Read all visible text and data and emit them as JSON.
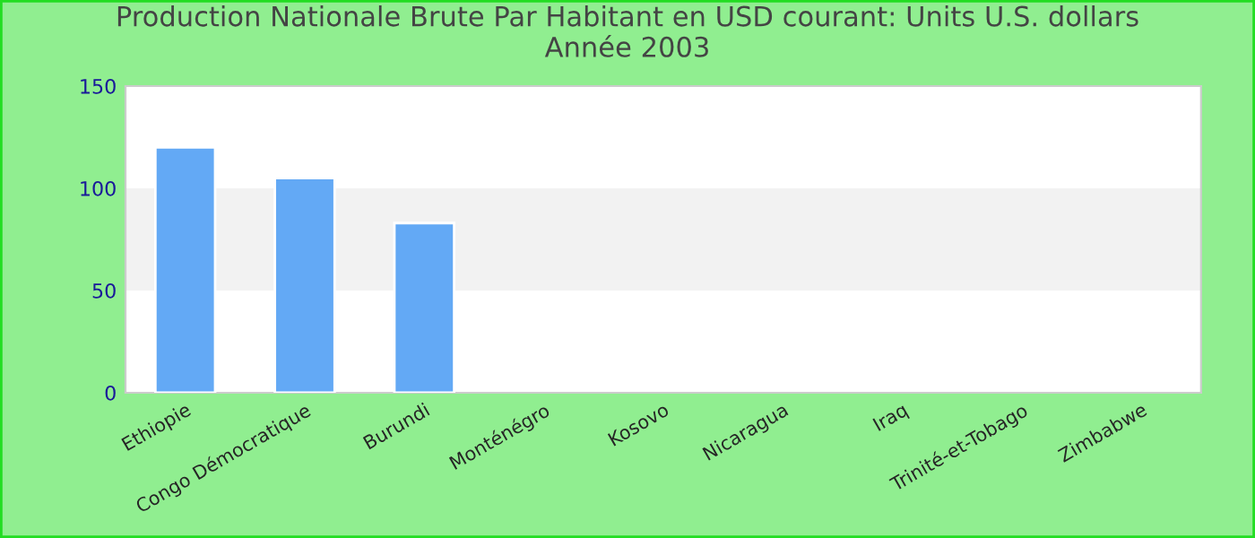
{
  "chart_data": {
    "type": "bar",
    "title": "Production Nationale Brute Par Habitant en USD courant: Units U.S. dollars\nAnnée 2003",
    "categories": [
      "Ethiopie",
      "Congo Démocratique",
      "Burundi",
      "Monténégro",
      "Kosovo",
      "Nicaragua",
      "Iraq",
      "Trinité-et-Tobago",
      "Zimbabwe"
    ],
    "values": [
      120,
      105,
      83,
      null,
      null,
      null,
      null,
      null,
      null
    ],
    "color": "#63a9f5",
    "ylim": [
      0,
      150
    ],
    "yticks": [
      0,
      50,
      100,
      150
    ],
    "bands": [
      {
        "axis": "y",
        "from": 50,
        "to": 100,
        "color": "#f2f2f2"
      }
    ],
    "grid": false,
    "legend": false
  }
}
